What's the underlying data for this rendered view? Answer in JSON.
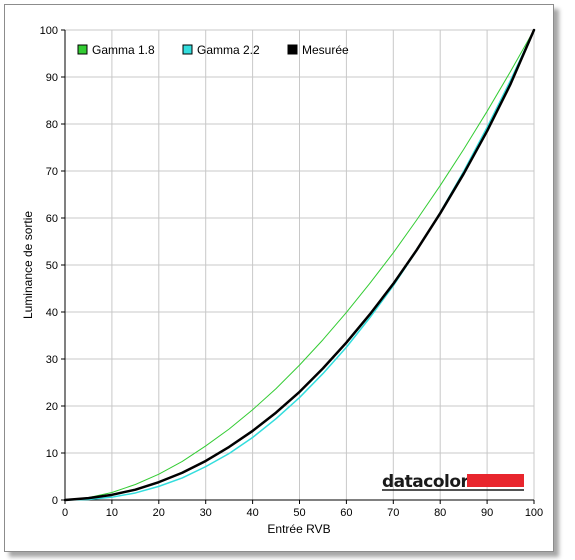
{
  "chart_data": {
    "type": "line",
    "xlabel": "Entrée RVB",
    "ylabel": "Luminance de sortie",
    "xlim": [
      0,
      100
    ],
    "ylim": [
      0,
      100
    ],
    "x_ticks": [
      0,
      10,
      20,
      30,
      40,
      50,
      60,
      70,
      80,
      90,
      100
    ],
    "y_ticks": [
      0,
      10,
      20,
      30,
      40,
      50,
      60,
      70,
      80,
      90,
      100
    ],
    "grid": true,
    "legend_position": "top-left",
    "x": [
      0,
      5,
      10,
      15,
      20,
      25,
      30,
      35,
      40,
      45,
      50,
      55,
      60,
      65,
      70,
      75,
      80,
      85,
      90,
      95,
      100
    ],
    "series": [
      {
        "name": "Gamma 1.8",
        "color": "#33cc33",
        "values": [
          0,
          0.5,
          1.6,
          3.3,
          5.5,
          8.2,
          11.5,
          15.1,
          19.2,
          23.7,
          28.7,
          34.1,
          39.9,
          46.1,
          52.6,
          59.6,
          66.9,
          74.6,
          82.7,
          91.2,
          100
        ]
      },
      {
        "name": "Gamma 2.2",
        "color": "#33dddd",
        "values": [
          0,
          0.1,
          0.6,
          1.5,
          2.9,
          4.7,
          7.1,
          9.9,
          13.3,
          17.3,
          21.8,
          26.9,
          32.5,
          38.8,
          45.6,
          53.1,
          61.2,
          69.9,
          79.3,
          89.3,
          100
        ]
      },
      {
        "name": "Mesurée",
        "color": "#000000",
        "values": [
          0,
          0.4,
          1.1,
          2.2,
          3.8,
          5.8,
          8.3,
          11.3,
          14.7,
          18.6,
          23.0,
          28.0,
          33.5,
          39.5,
          46.0,
          53.2,
          61.0,
          69.4,
          78.5,
          88.5,
          100
        ]
      }
    ]
  },
  "brand": {
    "name": "datacolor",
    "accent_color": "#e8262d"
  }
}
